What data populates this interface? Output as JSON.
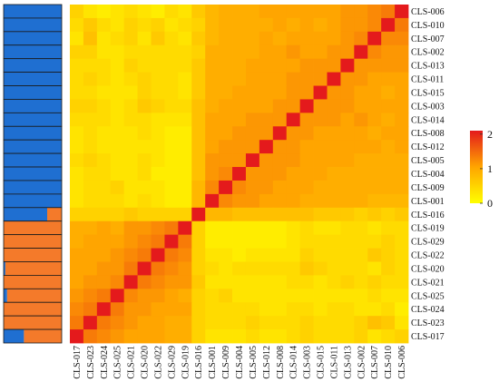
{
  "colors": {
    "scale": [
      "#ffff00",
      "#ffa500",
      "#e41a1c"
    ],
    "group1": "#1f6fd1",
    "group2": "#f47a2a",
    "bar_border": "#1a1a1a"
  },
  "legend": {
    "ticks": [
      {
        "value": 2,
        "label": "2"
      },
      {
        "value": 1,
        "label": "1"
      },
      {
        "value": 0,
        "label": "0"
      }
    ],
    "domain": [
      0,
      2.1
    ]
  },
  "chart_data": {
    "type": "heatmap",
    "title": "",
    "xlabel": "",
    "ylabel": "",
    "row_labels": [
      "CLS-006",
      "CLS-010",
      "CLS-007",
      "CLS-002",
      "CLS-013",
      "CLS-011",
      "CLS-015",
      "CLS-003",
      "CLS-014",
      "CLS-008",
      "CLS-012",
      "CLS-005",
      "CLS-004",
      "CLS-009",
      "CLS-001",
      "CLS-016",
      "CLS-019",
      "CLS-029",
      "CLS-022",
      "CLS-020",
      "CLS-021",
      "CLS-025",
      "CLS-024",
      "CLS-023",
      "CLS-017"
    ],
    "col_labels": [
      "CLS-017",
      "CLS-023",
      "CLS-024",
      "CLS-025",
      "CLS-021",
      "CLS-020",
      "CLS-022",
      "CLS-029",
      "CLS-019",
      "CLS-016",
      "CLS-001",
      "CLS-009",
      "CLS-004",
      "CLS-005",
      "CLS-012",
      "CLS-008",
      "CLS-014",
      "CLS-003",
      "CLS-015",
      "CLS-011",
      "CLS-013",
      "CLS-002",
      "CLS-007",
      "CLS-010",
      "CLS-006"
    ],
    "value_range": [
      0,
      2
    ],
    "groups": [
      "group1",
      "group1",
      "group1",
      "group1",
      "group1",
      "group1",
      "group1",
      "group1",
      "group1",
      "group1",
      "group1",
      "group1",
      "group1",
      "group1",
      "group1",
      "group1",
      "group2",
      "group2",
      "group2",
      "group2",
      "group2",
      "group2",
      "group2",
      "group2",
      "group2"
    ],
    "ancestry_group1": [
      1,
      1,
      1,
      1,
      1,
      1,
      1,
      1,
      1,
      1,
      1,
      1,
      1,
      1,
      1,
      0.75,
      0,
      0,
      0,
      0.03,
      0,
      0.06,
      0,
      0,
      0.35
    ],
    "values": [
      [
        0.5,
        0.3,
        0.2,
        0.3,
        0.4,
        0.3,
        0.2,
        0.4,
        0.3,
        0.6,
        0.8,
        0.9,
        0.9,
        0.9,
        1.0,
        1.0,
        1.0,
        1.0,
        1.0,
        1.0,
        1.1,
        1.1,
        1.2,
        1.3,
        2.0
      ],
      [
        0.4,
        0.6,
        0.4,
        0.3,
        0.5,
        0.4,
        0.5,
        0.3,
        0.4,
        0.5,
        0.8,
        0.9,
        0.9,
        0.9,
        0.9,
        1.0,
        0.9,
        1.0,
        0.9,
        1.0,
        1.1,
        1.1,
        1.2,
        2.0,
        1.3
      ],
      [
        0.3,
        0.7,
        0.3,
        0.4,
        0.5,
        0.3,
        0.6,
        0.4,
        0.3,
        0.6,
        0.8,
        0.9,
        0.9,
        0.9,
        1.0,
        0.9,
        1.0,
        1.0,
        1.0,
        1.0,
        1.1,
        1.2,
        2.0,
        1.2,
        1.2
      ],
      [
        0.5,
        0.5,
        0.3,
        0.3,
        0.4,
        0.4,
        0.4,
        0.4,
        0.4,
        0.5,
        0.9,
        0.9,
        0.9,
        0.9,
        1.0,
        1.0,
        1.1,
        1.0,
        1.0,
        1.1,
        1.1,
        2.0,
        1.2,
        1.1,
        1.1
      ],
      [
        0.4,
        0.4,
        0.4,
        0.3,
        0.5,
        0.4,
        0.4,
        0.4,
        0.4,
        0.6,
        0.9,
        0.9,
        0.9,
        1.0,
        1.0,
        1.0,
        1.0,
        1.1,
        1.1,
        1.1,
        2.0,
        1.1,
        1.1,
        1.1,
        1.1
      ],
      [
        0.4,
        0.5,
        0.4,
        0.3,
        0.4,
        0.5,
        0.4,
        0.4,
        0.3,
        0.6,
        0.9,
        0.9,
        0.9,
        1.0,
        1.0,
        1.0,
        1.1,
        1.1,
        1.1,
        2.0,
        1.1,
        1.1,
        1.0,
        1.0,
        1.0
      ],
      [
        0.4,
        0.4,
        0.3,
        0.3,
        0.3,
        0.5,
        0.4,
        0.4,
        0.3,
        0.6,
        0.9,
        0.9,
        1.0,
        1.0,
        1.0,
        1.0,
        1.1,
        1.1,
        2.0,
        1.1,
        1.1,
        1.0,
        1.0,
        0.9,
        1.0
      ],
      [
        0.5,
        0.5,
        0.4,
        0.3,
        0.4,
        0.6,
        0.5,
        0.4,
        0.4,
        0.7,
        0.9,
        1.0,
        1.0,
        1.0,
        1.0,
        1.1,
        1.1,
        2.0,
        1.1,
        1.1,
        1.1,
        1.0,
        1.0,
        1.0,
        1.0
      ],
      [
        0.4,
        0.4,
        0.4,
        0.3,
        0.4,
        0.4,
        0.3,
        0.3,
        0.3,
        0.7,
        1.0,
        1.0,
        1.0,
        1.1,
        1.1,
        1.1,
        2.0,
        1.1,
        1.1,
        1.1,
        1.0,
        1.1,
        1.0,
        0.9,
        1.0
      ],
      [
        0.3,
        0.4,
        0.3,
        0.3,
        0.3,
        0.4,
        0.3,
        0.2,
        0.2,
        0.7,
        1.0,
        1.0,
        1.1,
        1.1,
        1.1,
        2.0,
        1.1,
        1.1,
        1.0,
        1.0,
        1.0,
        1.0,
        0.9,
        1.0,
        1.0
      ],
      [
        0.3,
        0.4,
        0.3,
        0.3,
        0.3,
        0.3,
        0.3,
        0.2,
        0.2,
        0.7,
        1.0,
        1.1,
        1.1,
        1.1,
        2.0,
        1.1,
        1.1,
        1.0,
        1.0,
        1.0,
        1.0,
        1.0,
        1.0,
        0.9,
        1.0
      ],
      [
        0.4,
        0.5,
        0.4,
        0.3,
        0.3,
        0.4,
        0.3,
        0.2,
        0.2,
        0.7,
        1.1,
        1.1,
        1.1,
        2.0,
        1.1,
        1.1,
        1.1,
        1.0,
        1.0,
        1.0,
        1.0,
        0.9,
        0.9,
        0.9,
        0.9
      ],
      [
        0.3,
        0.4,
        0.4,
        0.3,
        0.3,
        0.4,
        0.2,
        0.2,
        0.2,
        0.7,
        1.1,
        1.2,
        2.0,
        1.1,
        1.1,
        1.1,
        1.0,
        1.0,
        1.0,
        0.9,
        0.9,
        0.9,
        0.9,
        0.9,
        0.9
      ],
      [
        0.3,
        0.4,
        0.4,
        0.5,
        0.3,
        0.3,
        0.3,
        0.2,
        0.2,
        0.8,
        1.2,
        2.0,
        1.2,
        1.1,
        1.1,
        1.0,
        1.0,
        1.0,
        0.9,
        0.9,
        0.9,
        0.9,
        0.9,
        0.9,
        0.9
      ],
      [
        0.3,
        0.4,
        0.4,
        0.4,
        0.3,
        0.4,
        0.3,
        0.2,
        0.2,
        0.8,
        2.0,
        1.2,
        1.1,
        1.1,
        1.0,
        1.0,
        1.0,
        0.9,
        0.9,
        0.9,
        0.9,
        0.9,
        0.8,
        0.8,
        0.8
      ],
      [
        0.5,
        0.5,
        0.5,
        0.5,
        0.6,
        0.5,
        0.5,
        0.5,
        0.5,
        2.0,
        0.8,
        0.8,
        0.7,
        0.7,
        0.7,
        0.7,
        0.7,
        0.7,
        0.6,
        0.6,
        0.6,
        0.5,
        0.6,
        0.5,
        0.6
      ],
      [
        0.9,
        0.9,
        1.0,
        0.9,
        1.1,
        1.1,
        1.2,
        1.3,
        2.0,
        0.5,
        0.2,
        0.2,
        0.2,
        0.2,
        0.2,
        0.2,
        0.3,
        0.4,
        0.3,
        0.3,
        0.4,
        0.4,
        0.3,
        0.4,
        0.4
      ],
      [
        0.9,
        1.0,
        1.0,
        1.0,
        1.1,
        1.2,
        1.3,
        2.0,
        1.3,
        0.5,
        0.2,
        0.2,
        0.2,
        0.2,
        0.2,
        0.2,
        0.3,
        0.4,
        0.4,
        0.4,
        0.4,
        0.4,
        0.4,
        0.5,
        0.4
      ],
      [
        1.0,
        1.0,
        1.0,
        1.1,
        1.2,
        1.3,
        2.0,
        1.3,
        1.2,
        0.5,
        0.3,
        0.3,
        0.2,
        0.3,
        0.3,
        0.3,
        0.3,
        0.5,
        0.4,
        0.4,
        0.4,
        0.4,
        0.6,
        0.5,
        0.4
      ],
      [
        1.0,
        1.0,
        1.1,
        1.1,
        1.3,
        2.0,
        1.3,
        1.2,
        1.1,
        0.5,
        0.4,
        0.3,
        0.4,
        0.4,
        0.4,
        0.4,
        0.4,
        0.6,
        0.5,
        0.4,
        0.4,
        0.4,
        0.3,
        0.5,
        0.4
      ],
      [
        1.0,
        1.1,
        1.1,
        1.2,
        2.0,
        1.3,
        1.2,
        1.1,
        1.1,
        0.6,
        0.3,
        0.3,
        0.3,
        0.3,
        0.3,
        0.3,
        0.4,
        0.4,
        0.3,
        0.4,
        0.5,
        0.4,
        0.5,
        0.4,
        0.4
      ],
      [
        1.1,
        1.2,
        1.3,
        2.0,
        1.2,
        1.1,
        1.1,
        1.0,
        0.9,
        0.5,
        0.4,
        0.5,
        0.3,
        0.3,
        0.3,
        0.3,
        0.3,
        0.3,
        0.3,
        0.3,
        0.3,
        0.3,
        0.4,
        0.3,
        0.3
      ],
      [
        1.2,
        1.3,
        2.0,
        1.3,
        1.1,
        1.1,
        1.0,
        1.0,
        1.0,
        0.5,
        0.4,
        0.4,
        0.4,
        0.4,
        0.3,
        0.3,
        0.4,
        0.4,
        0.3,
        0.4,
        0.4,
        0.3,
        0.3,
        0.4,
        0.2
      ],
      [
        1.3,
        2.0,
        1.3,
        1.2,
        1.1,
        1.0,
        1.0,
        0.9,
        0.9,
        0.5,
        0.4,
        0.4,
        0.4,
        0.5,
        0.4,
        0.4,
        0.4,
        0.5,
        0.4,
        0.4,
        0.4,
        0.5,
        0.7,
        0.6,
        0.3
      ],
      [
        2.0,
        1.3,
        1.2,
        1.1,
        1.0,
        1.0,
        1.0,
        0.9,
        0.9,
        0.5,
        0.3,
        0.3,
        0.3,
        0.4,
        0.3,
        0.3,
        0.4,
        0.5,
        0.4,
        0.4,
        0.4,
        0.5,
        0.3,
        0.4,
        0.5
      ]
    ]
  }
}
